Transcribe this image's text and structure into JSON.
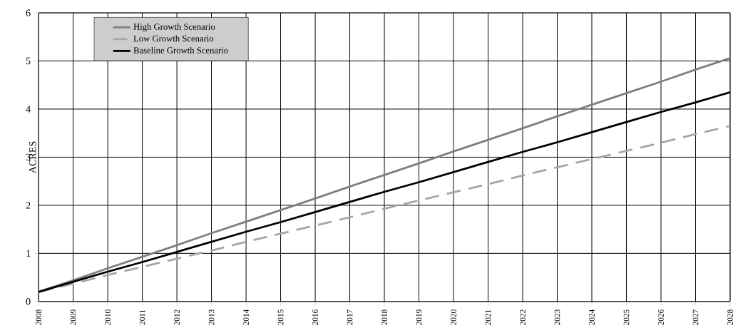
{
  "chart_data": {
    "type": "line",
    "ylabel": "ACRES",
    "ylim": [
      0,
      6
    ],
    "categories": [
      "2008",
      "2009",
      "2010",
      "2011",
      "2012",
      "2013",
      "2014",
      "2015",
      "2016",
      "2017",
      "2018",
      "2019",
      "2020",
      "2021",
      "2022",
      "2023",
      "2024",
      "2025",
      "2026",
      "2027",
      "2028"
    ],
    "yticks": [
      0,
      1,
      2,
      3,
      4,
      5,
      6
    ],
    "grid": true,
    "legend": "top left",
    "marker": "none",
    "series": [
      {
        "name": "High Growth Scenario",
        "color": "#7f7f7f",
        "line_style": "solid",
        "values": [
          0.2,
          0.44,
          0.69,
          0.93,
          1.17,
          1.42,
          1.66,
          1.9,
          2.14,
          2.39,
          2.63,
          2.87,
          3.12,
          3.36,
          3.6,
          3.85,
          4.09,
          4.33,
          4.57,
          4.82,
          5.06
        ]
      },
      {
        "name": "Low Growth Scenario",
        "color": "#a6a6a6",
        "line_style": "dashed",
        "values": [
          0.2,
          0.37,
          0.55,
          0.72,
          0.89,
          1.06,
          1.24,
          1.41,
          1.58,
          1.75,
          1.93,
          2.1,
          2.27,
          2.44,
          2.62,
          2.79,
          2.96,
          3.13,
          3.3,
          3.48,
          3.65
        ]
      },
      {
        "name": "Baseline Growth Scenario",
        "color": "#000000",
        "line_style": "solid",
        "values": [
          0.2,
          0.41,
          0.62,
          0.82,
          1.03,
          1.24,
          1.45,
          1.65,
          1.86,
          2.07,
          2.28,
          2.48,
          2.69,
          2.9,
          3.11,
          3.31,
          3.52,
          3.73,
          3.94,
          4.14,
          4.35
        ]
      }
    ]
  }
}
